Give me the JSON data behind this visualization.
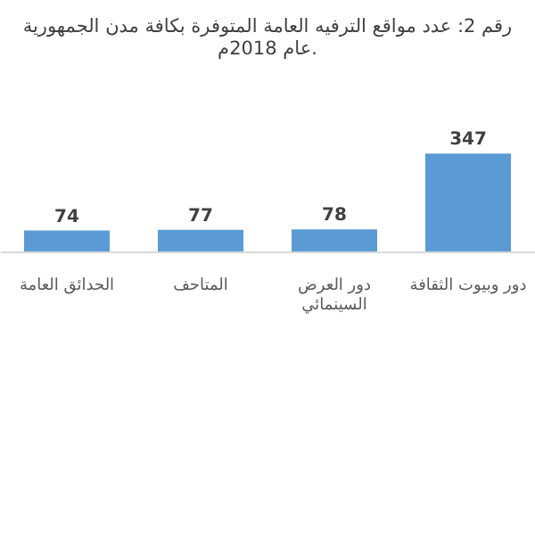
{
  "chart_data": {
    "type": "bar",
    "title": "رقم 2: عدد مواقع الترفيه العامة المتوفرة بكافة مدن الجمهورية\nعام 2018م.",
    "categories": [
      "الحدائق العامة",
      "المتاحف",
      "دور العرض السينمائي",
      "دور وبيوت الثقافة"
    ],
    "values": [
      74,
      77,
      78,
      347
    ],
    "color": "#5b9bd5",
    "data_labels": true,
    "grid": false
  }
}
